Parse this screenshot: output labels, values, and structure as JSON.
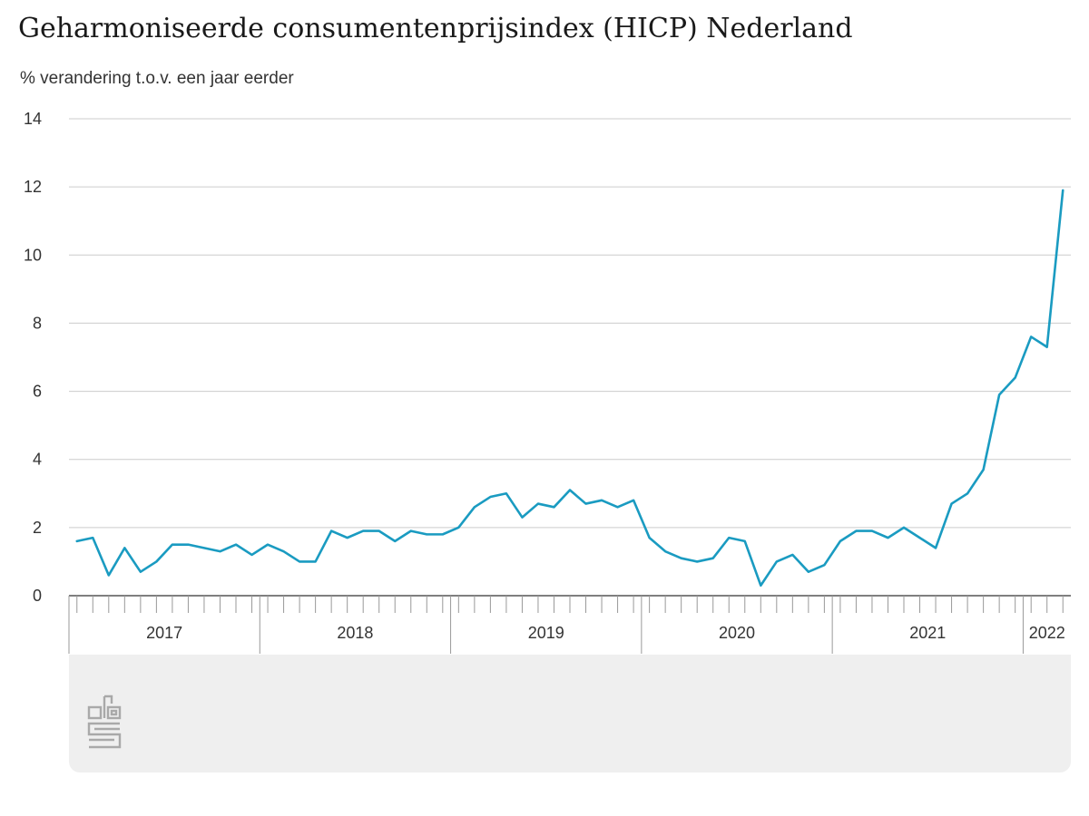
{
  "header": {
    "title": "Geharmoniseerde consumentenprijsindex (HICP) Nederland",
    "subtitle": "% verandering t.o.v. een jaar eerder"
  },
  "logo": {
    "icon": "cbs-logo-icon"
  },
  "colors": {
    "line": "#1a9bc1",
    "grid": "#cccccc",
    "footer": "#efefef"
  },
  "chart_data": {
    "type": "line",
    "title": "Geharmoniseerde consumentenprijsindex (HICP) Nederland",
    "ylabel": "% verandering t.o.v. een jaar eerder",
    "xlabel": "",
    "ylim": [
      0,
      14
    ],
    "yticks": [
      0,
      2,
      4,
      6,
      8,
      10,
      12,
      14
    ],
    "grid": true,
    "year_labels": [
      "2017",
      "2018",
      "2019",
      "2020",
      "2021",
      "2022"
    ],
    "start": "2017-01",
    "end": "2022-03",
    "series": [
      {
        "values": [
          1.6,
          1.7,
          0.6,
          1.4,
          0.7,
          1.0,
          1.5,
          1.5,
          1.4,
          1.3,
          1.5,
          1.2,
          1.5,
          1.3,
          1.0,
          1.0,
          1.9,
          1.7,
          1.9,
          1.9,
          1.6,
          1.9,
          1.8,
          1.8,
          2.0,
          2.6,
          2.9,
          3.0,
          2.3,
          2.7,
          2.6,
          3.1,
          2.7,
          2.8,
          2.6,
          2.8,
          1.7,
          1.3,
          1.1,
          1.0,
          1.1,
          1.7,
          1.6,
          0.3,
          1.0,
          1.2,
          0.7,
          0.9,
          1.6,
          1.9,
          1.9,
          1.7,
          2.0,
          1.7,
          1.4,
          2.7,
          3.0,
          3.7,
          5.9,
          6.4,
          7.6,
          7.3,
          11.9
        ]
      }
    ]
  }
}
